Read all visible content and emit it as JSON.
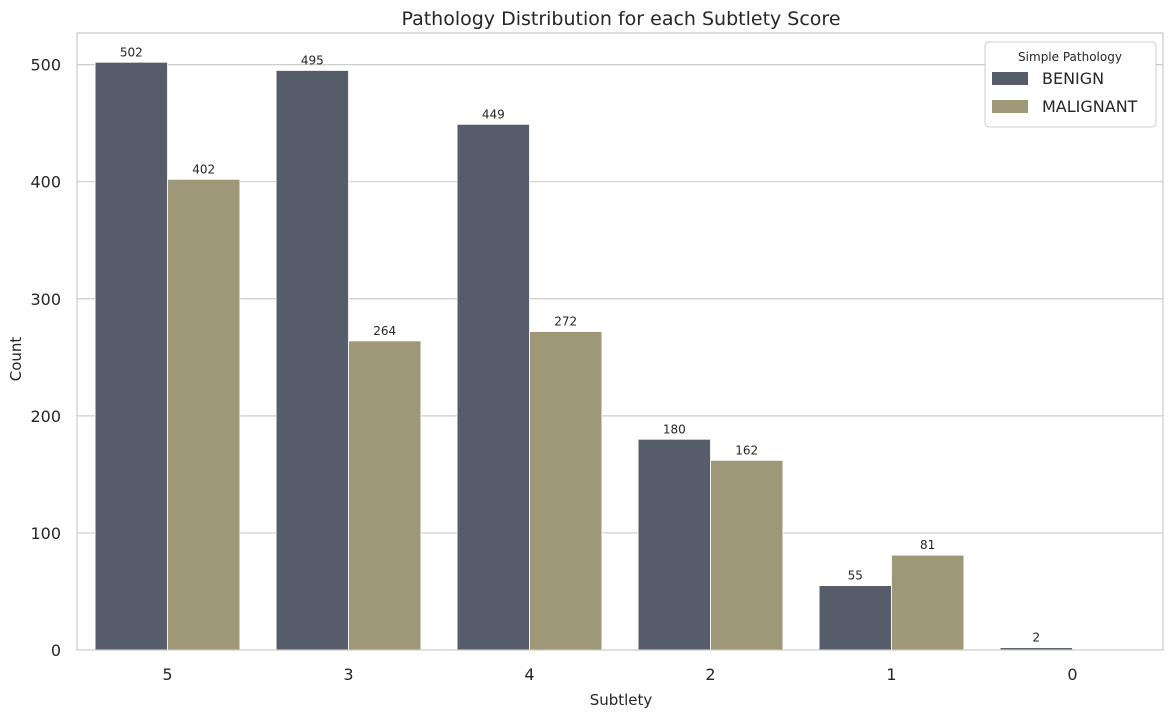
{
  "chart_data": {
    "type": "bar",
    "title": "Pathology Distribution for each Subtlety Score",
    "xlabel": "Subtlety",
    "ylabel": "Count",
    "categories": [
      "5",
      "3",
      "4",
      "2",
      "1",
      "0"
    ],
    "series": [
      {
        "name": "BENIGN",
        "values": [
          502,
          495,
          449,
          180,
          55,
          2
        ],
        "color": "#575c6b"
      },
      {
        "name": "MALIGNANT",
        "values": [
          402,
          264,
          272,
          162,
          81,
          0
        ],
        "color": "#9e9778"
      }
    ],
    "data_labels": [
      [
        "502",
        "495",
        "449",
        "180",
        "55",
        "2"
      ],
      [
        "402",
        "264",
        "272",
        "162",
        "81",
        ""
      ]
    ],
    "ylim": [
      0,
      527
    ],
    "yticks": [
      0,
      100,
      200,
      300,
      400,
      500
    ],
    "grid": true,
    "legend": {
      "title": "Simple Pathology",
      "position": "top-right"
    }
  }
}
